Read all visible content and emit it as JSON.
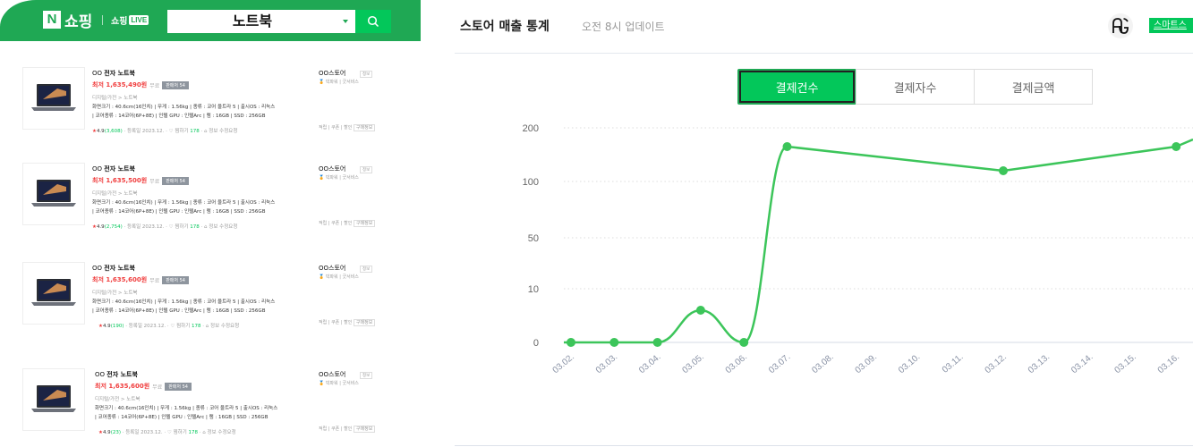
{
  "shopping": {
    "logo_letter": "N",
    "logo_text": "쇼핑",
    "live_prefix": "쇼핑",
    "live_badge": "LIVE",
    "search_value": "노트북",
    "brand_color": "#1fa854",
    "products": [
      {
        "title_prefix": "OO",
        "title_main": "전자 노트북",
        "price": "최저 1,635,490원",
        "shipping": "무료",
        "compare": "판매처 54",
        "category": "디지털/가전 > 노트북",
        "spec_line1": "화면크기 : 40.6cm(16인치) | 무게 : 1.56kg | 종류 : 코어 울트라 5 | 출시OS : 리눅스",
        "spec_line2": "| 코어종류 : 14코어(6P+8E) | 인텔 GPU : 인텔Arc | 램 : 16GB | SSD : 256GB",
        "rating": "4.9",
        "reviews": "(3,608)",
        "registered": "등록일 2023.12.",
        "wish_label": "찜하기",
        "wish_count": "178",
        "report": "정보 수정요청",
        "store_name": "OO스토어",
        "store_info": "정보",
        "store_grade": "빅파워 | 굿서비스",
        "store_links": "적립 | 쿠폰 | 할인",
        "store_buyinfo": "구매정보"
      },
      {
        "title_prefix": "OO",
        "title_main": "전자 노트북",
        "price": "최저 1,635,500원",
        "shipping": "무료",
        "compare": "판매처 54",
        "category": "디지털/가전 > 노트북",
        "spec_line1": "화면크기 : 40.6cm(16인치) | 무게 : 1.56kg | 종류 : 코어 울트라 5 | 출시OS : 리눅스",
        "spec_line2": "| 코어종류 : 14코어(6P+8E) | 인텔 GPU : 인텔Arc | 램 : 16GB | SSD : 256GB",
        "rating": "4.9",
        "reviews": "(2,754)",
        "registered": "등록일 2023.12.",
        "wish_label": "찜하기",
        "wish_count": "178",
        "report": "정보 수정요청",
        "store_name": "OO스토어",
        "store_info": "정보",
        "store_grade": "빅파워 | 굿서비스",
        "store_links": "적립 | 쿠폰 | 할인",
        "store_buyinfo": "구매정보"
      },
      {
        "title_prefix": "OO",
        "title_main": "전자 노트북",
        "price": "최저 1,635,600원",
        "shipping": "무료",
        "compare": "판매처 54",
        "category": "디지털/가전 > 노트북",
        "spec_line1": "화면크기 : 40.6cm(16인치) | 무게 : 1.56kg | 종류 : 코어 울트라 5 | 출시OS : 리눅스",
        "spec_line2": "| 코어종류 : 14코어(6P+8E) | 인텔 GPU : 인텔Arc | 램 : 16GB | SSD : 256GB",
        "rating": "4.9",
        "reviews": "(190)",
        "registered": "등록일 2023.12.",
        "wish_label": "찜하기",
        "wish_count": "178",
        "report": "정보 수정요청",
        "store_name": "OO스토어",
        "store_info": "정보",
        "store_grade": "빅파워 | 굿서비스",
        "store_links": "적립 | 쿠폰 | 할인",
        "store_buyinfo": "구매정보"
      },
      {
        "title_prefix": "OO",
        "title_main": "전자 노트북",
        "price": "최저 1,635,600원",
        "shipping": "무료",
        "compare": "판매처 54",
        "category": "디지털/가전 > 노트북",
        "spec_line1": "화면크기 : 40.6cm(16인치) | 무게 : 1.56kg | 종류 : 코어 울트라 5 | 출시OS : 리눅스",
        "spec_line2": "| 코어종류 : 14코어(6P+8E) | 인텔 GPU : 인텔Arc | 램 : 16GB | SSD : 256GB",
        "rating": "4.9",
        "reviews": "(23)",
        "registered": "등록일 2023.12.",
        "wish_label": "찜하기",
        "wish_count": "178",
        "report": "정보 수정요청",
        "store_name": "OO스토어",
        "store_info": "정보",
        "store_grade": "빅파워 | 굿서비스",
        "store_links": "적립 | 쿠폰 | 할인",
        "store_buyinfo": "구매정보"
      }
    ]
  },
  "stats": {
    "title": "스토어 매출 통계",
    "subtitle": "오전 8시 업데이트",
    "badge": "스마트스",
    "tabs": [
      {
        "label": "결제건수",
        "active": true
      },
      {
        "label": "결제자수",
        "active": false
      },
      {
        "label": "결제금액",
        "active": false
      }
    ],
    "accent": "#03c75a",
    "line_color": "#3cc55a"
  },
  "chart_data": {
    "type": "line",
    "title": "결제건수",
    "xlabel": "",
    "ylabel": "",
    "y_ticks": [
      0,
      10,
      50,
      100,
      200
    ],
    "y_scale": "non-linear (equal spacing per tick)",
    "grid": "horizontal dotted",
    "categories": [
      "03.02.",
      "03.03.",
      "03.04.",
      "03.05.",
      "03.06.",
      "03.07.",
      "03.08.",
      "03.09.",
      "03.10.",
      "03.11.",
      "03.12.",
      "03.13.",
      "03.14.",
      "03.15.",
      "03.16."
    ],
    "series": [
      {
        "name": "결제건수",
        "points": [
          {
            "x": "03.02.",
            "y": 0
          },
          {
            "x": "03.03.",
            "y": 0
          },
          {
            "x": "03.04.",
            "y": 0
          },
          {
            "x": "03.05.",
            "y": 6
          },
          {
            "x": "03.06.",
            "y": 0
          },
          {
            "x": "03.07.",
            "y": 165
          },
          {
            "x": "03.12.",
            "y": 120
          },
          {
            "x": "03.16.",
            "y": 165
          }
        ]
      }
    ]
  }
}
